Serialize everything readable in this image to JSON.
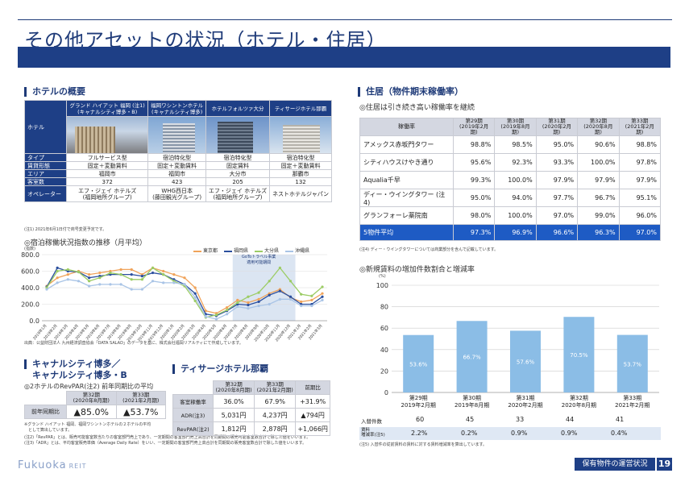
{
  "page": {
    "title": "その他アセットの状況（ホテル・住居）",
    "footer_label": "保有物件の運営状況",
    "page_number": "19",
    "logo": "Fukuoka",
    "logo_suffix": "REIT"
  },
  "hotel_overview": {
    "heading": "ホテルの概要",
    "row_label_hotel": "ホテル",
    "hotels": [
      "グランド ハイアット 福岡 (注1)\n(キャナルシティ博多・B)",
      "福岡ワシントンホテル\n(キャナルシティ博多)",
      "ホテルフォルツァ大分",
      "ティサージホテル那覇"
    ],
    "rows": [
      {
        "label": "タイプ",
        "values": [
          "フルサービス型",
          "宿泊特化型",
          "宿泊特化型",
          "宿泊特化型"
        ]
      },
      {
        "label": "賃貸形態",
        "values": [
          "固定＋変動賃料",
          "固定＋変動賃料",
          "固定賃料",
          "固定＋変動賃料"
        ]
      },
      {
        "label": "エリア",
        "values": [
          "福岡市",
          "福岡市",
          "大分市",
          "那覇市"
        ]
      },
      {
        "label": "客室数",
        "values": [
          "372",
          "423",
          "205",
          "132"
        ]
      },
      {
        "label": "オペレーター",
        "values": [
          "エフ・ジェイ ホテルズ\n(福岡地所グループ)",
          "WHG西日本\n(藤田観光グループ)",
          "エフ・ジェイ ホテルズ\n(福岡地所グループ)",
          "ネストホテルジャパン"
        ]
      }
    ],
    "note": "(注1) 2021年6月1日付で商号変更予定です。"
  },
  "occupancy_chart": {
    "heading": "◎宿泊稼働状況指数の推移（月平均）",
    "unit": "(指数)",
    "annotation": "GoToトラベル事業\n適用可能期間",
    "source": "出典：公益財団法人 九州経済調査協会「DATA SALAD」のデータを基に、株式会社福岡リアルティにて作成しています。"
  },
  "chart_data": [
    {
      "type": "line",
      "title": "宿泊稼働状況指数の推移（月平均）",
      "ylabel": "(指数)",
      "ylim": [
        0,
        800
      ],
      "yticks": [
        0,
        200,
        400,
        600,
        800
      ],
      "grid": true,
      "legend_position": "top-right",
      "categories": [
        "2019年1月",
        "2019年2月",
        "2019年3月",
        "2019年4月",
        "2019年5月",
        "2019年6月",
        "2019年7月",
        "2019年8月",
        "2019年9月",
        "2019年10月",
        "2019年11月",
        "2019年12月",
        "2020年1月",
        "2020年2月",
        "2020年3月",
        "2020年4月",
        "2020年5月",
        "2020年6月",
        "2020年7月",
        "2020年8月",
        "2020年9月",
        "2020年10月",
        "2020年11月",
        "2020年12月",
        "2021年1月",
        "2021年2月",
        "2021年3月"
      ],
      "series": [
        {
          "name": "東京都",
          "color": "#f0a35a",
          "values": [
            420,
            520,
            560,
            600,
            560,
            580,
            600,
            620,
            620,
            560,
            640,
            600,
            560,
            520,
            400,
            120,
            90,
            160,
            250,
            220,
            260,
            330,
            380,
            280,
            230,
            250,
            330
          ]
        },
        {
          "name": "福岡県",
          "color": "#2b4f9e",
          "values": [
            410,
            640,
            600,
            590,
            520,
            540,
            560,
            560,
            560,
            540,
            580,
            560,
            500,
            440,
            330,
            80,
            60,
            120,
            200,
            190,
            230,
            310,
            360,
            290,
            200,
            200,
            290
          ]
        },
        {
          "name": "大分県",
          "color": "#9ccc65",
          "values": [
            400,
            600,
            620,
            590,
            480,
            520,
            580,
            560,
            500,
            500,
            640,
            560,
            480,
            420,
            240,
            40,
            70,
            130,
            220,
            290,
            340,
            480,
            640,
            480,
            320,
            300,
            410
          ]
        },
        {
          "name": "沖縄県",
          "color": "#a9c4e6",
          "values": [
            380,
            460,
            500,
            480,
            420,
            440,
            440,
            440,
            380,
            380,
            480,
            460,
            460,
            440,
            280,
            50,
            20,
            80,
            170,
            150,
            180,
            200,
            260,
            260,
            180,
            180,
            250
          ]
        }
      ]
    },
    {
      "type": "bar",
      "title": "新規賃料の増加件数割合と増減率",
      "ylabel": "(%)",
      "ylim": [
        0,
        100
      ],
      "yticks": [
        0,
        20,
        40,
        60,
        80,
        100
      ],
      "categories": [
        "第29期\n2019年2月期",
        "第30期\n2019年8月期",
        "第31期\n2020年2月期",
        "第32期\n2020年8月期",
        "第33期\n2021年2月期"
      ],
      "values": [
        53.6,
        66.7,
        57.6,
        70.5,
        53.7
      ],
      "value_labels": [
        "53.6%",
        "66.7%",
        "57.6%",
        "70.5%",
        "53.7%"
      ],
      "color": "#8bbde6"
    }
  ],
  "canal_city": {
    "heading_line1": "キャナルシティ博多／",
    "heading_line2": "キャナルシティ博多・B",
    "subheading": "◎2ホテルのRevPAR(注2) 前年同期比の平均",
    "col1": "第32期\n(2020年8月期)",
    "col2": "第33期\n(2021年2月期)",
    "row_label": "前年同期比",
    "val1": "▲85.0%",
    "val2": "▲53.7%",
    "note1": "※グランド ハイアット 福岡、福岡ワシントンホテルの２ホテルの平均\n　として算出しています。",
    "note2": "(注2)「RevPAR」とは、販売可能客室数当たりの客室部門売上であり、一定期間の客室部門売上高合計を同期間の販売可能客室数合計で除した値をいいます。",
    "note3": "(注3)「ADR」とは、平均客室販売単価（Average Daily Rate）をいい、一定期間の客室部門売上高合計を同期間の販売客室数合計で除した値をいいます。"
  },
  "tissage": {
    "heading": "ティサージホテル那覇",
    "col1": "第32期\n(2020年8月期)",
    "col2": "第33期\n(2021年2月期)",
    "col3": "前期比",
    "rows": [
      {
        "label": "客室稼働率",
        "v1": "36.0%",
        "v2": "67.9%",
        "v3": "+31.9%"
      },
      {
        "label": "ADR(注3)",
        "v1": "5,031円",
        "v2": "4,237円",
        "v3": "▲794円"
      },
      {
        "label": "RevPAR(注2)",
        "v1": "1,812円",
        "v2": "2,878円",
        "v3": "+1,066円"
      }
    ]
  },
  "residence": {
    "heading": "住居（物件期末稼働率）",
    "subheading": "◎住居は引き続き高い稼働率を継続",
    "header_label": "稼働率",
    "periods": [
      "第29期\n(2019年2月期)",
      "第30期\n(2019年8月期)",
      "第31期\n(2020年2月期)",
      "第32期\n(2020年8月期)",
      "第33期\n(2021年2月期)"
    ],
    "rows": [
      {
        "name": "アメックス赤坂門タワー",
        "values": [
          "98.8%",
          "98.5%",
          "95.0%",
          "90.6%",
          "98.8%"
        ]
      },
      {
        "name": "シティハウスけやき通り",
        "values": [
          "95.6%",
          "92.3%",
          "93.3%",
          "100.0%",
          "97.8%"
        ]
      },
      {
        "name": "Aqualia千早",
        "values": [
          "99.3%",
          "100.0%",
          "97.9%",
          "97.9%",
          "97.9%"
        ]
      },
      {
        "name": "ディー・ウイングタワー (注4)",
        "values": [
          "95.0%",
          "94.0%",
          "97.7%",
          "96.7%",
          "95.1%"
        ]
      },
      {
        "name": "グランフォーレ薬院南",
        "values": [
          "98.0%",
          "100.0%",
          "97.0%",
          "99.0%",
          "96.0%"
        ]
      }
    ],
    "avg_label": "5物件平均",
    "avg_values": [
      "97.3%",
      "96.9%",
      "96.6%",
      "96.3%",
      "97.0%"
    ],
    "note": "(注4) ディー・ウイングタワーについては商業部分を含んで記載しています。"
  },
  "rent_chart": {
    "heading": "◎新規賃料の増加件数割合と増減率",
    "unit": "(%)",
    "row1_label": "入替件数",
    "row1_values": [
      "60",
      "45",
      "33",
      "44",
      "41"
    ],
    "row2_label": "賃料\n増減率(注5)",
    "row2_values": [
      "2.2%",
      "0.2%",
      "0.9%",
      "0.9%",
      "0.4%"
    ],
    "note": "(注5) 入替件の従前賃料の賃料に対する賃料増減率を算出しています。"
  }
}
